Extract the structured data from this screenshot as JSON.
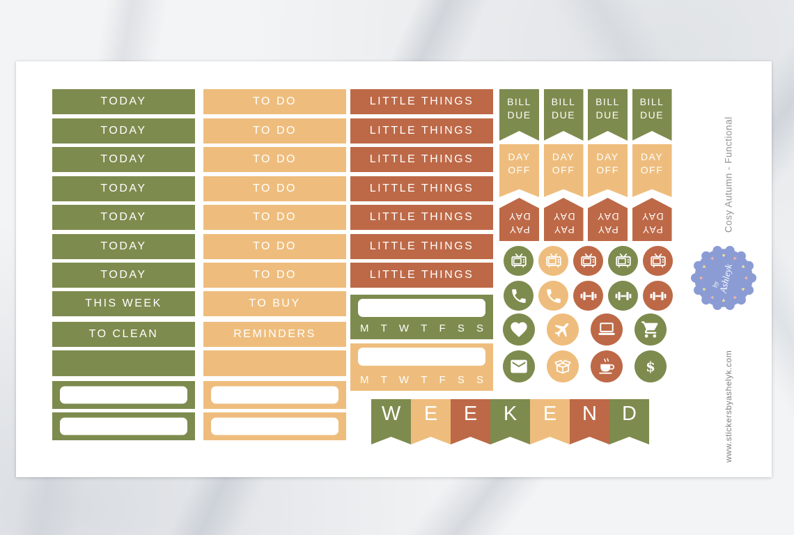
{
  "palette": {
    "green": "#7d8b4e",
    "tan": "#eebd7d",
    "rust": "#bd6947",
    "badge_blue": "#8b9cd4",
    "heart_yellow": "#efe09e",
    "heart_pink": "#f2b4a8"
  },
  "sheet": {
    "side_label_top": "Cosy Autumn - Functional",
    "side_label_bottom": "www.stickersbyashelyk.com"
  },
  "badge": {
    "prefix": "by",
    "name": "Ashleyk",
    "heart_glyph": "♥"
  },
  "header_columns": [
    {
      "name": "today",
      "color": "green",
      "rows": [
        "TODAY",
        "TODAY",
        "TODAY",
        "TODAY",
        "TODAY",
        "TODAY",
        "TODAY",
        "THIS WEEK",
        "TO CLEAN"
      ],
      "blank_rows": 1,
      "writein_rows": 2
    },
    {
      "name": "todo",
      "color": "tan",
      "rows": [
        "TO DO",
        "TO DO",
        "TO DO",
        "TO DO",
        "TO DO",
        "TO DO",
        "TO DO",
        "TO BUY",
        "REMINDERS"
      ],
      "blank_rows": 1,
      "writein_rows": 2
    },
    {
      "name": "little-things",
      "color": "rust",
      "rows": [
        "LITTLE THINGS",
        "LITTLE THINGS",
        "LITTLE THINGS",
        "LITTLE THINGS",
        "LITTLE THINGS",
        "LITTLE THINGS",
        "LITTLE THINGS"
      ],
      "blank_rows": 0,
      "writein_rows": 0
    }
  ],
  "trackers": [
    {
      "color": "green",
      "days": [
        "M",
        "T",
        "W",
        "T",
        "F",
        "S",
        "S"
      ]
    },
    {
      "color": "tan",
      "days": [
        "M",
        "T",
        "W",
        "T",
        "F",
        "S",
        "S"
      ]
    }
  ],
  "flag_rows": [
    {
      "line1": "BILL",
      "line2": "DUE",
      "color": "green",
      "count": 4,
      "orientation": "notch-bottom"
    },
    {
      "line1": "DAY",
      "line2": "OFF",
      "color": "tan",
      "count": 4,
      "orientation": "notch-bottom"
    },
    {
      "line1": "PAY",
      "line2": "DAY",
      "color": "rust",
      "count": 4,
      "orientation": "flipped"
    }
  ],
  "icon_rows": [
    {
      "size": "small",
      "icons": [
        {
          "glyph": "tv",
          "color": "green"
        },
        {
          "glyph": "tv",
          "color": "tan"
        },
        {
          "glyph": "tv",
          "color": "rust"
        },
        {
          "glyph": "tv",
          "color": "green"
        },
        {
          "glyph": "tv",
          "color": "rust"
        }
      ]
    },
    {
      "size": "small",
      "icons": [
        {
          "glyph": "phone",
          "color": "green"
        },
        {
          "glyph": "phone",
          "color": "tan"
        },
        {
          "glyph": "dumbbell",
          "color": "rust"
        },
        {
          "glyph": "dumbbell",
          "color": "green"
        },
        {
          "glyph": "dumbbell",
          "color": "rust"
        }
      ]
    },
    {
      "size": "large",
      "icons": [
        {
          "glyph": "heart",
          "color": "green"
        },
        {
          "glyph": "airplane",
          "color": "tan"
        },
        {
          "glyph": "laptop",
          "color": "rust"
        },
        {
          "glyph": "cart",
          "color": "green"
        }
      ]
    },
    {
      "size": "large",
      "icons": [
        {
          "glyph": "envelope",
          "color": "green"
        },
        {
          "glyph": "box",
          "color": "tan"
        },
        {
          "glyph": "coffee",
          "color": "rust"
        },
        {
          "glyph": "dollar",
          "color": "green"
        }
      ]
    }
  ],
  "weekend_banner": {
    "letters": [
      "W",
      "E",
      "E",
      "K",
      "E",
      "N",
      "D"
    ],
    "colors": [
      "green",
      "tan",
      "rust",
      "green",
      "tan",
      "rust",
      "green"
    ]
  }
}
